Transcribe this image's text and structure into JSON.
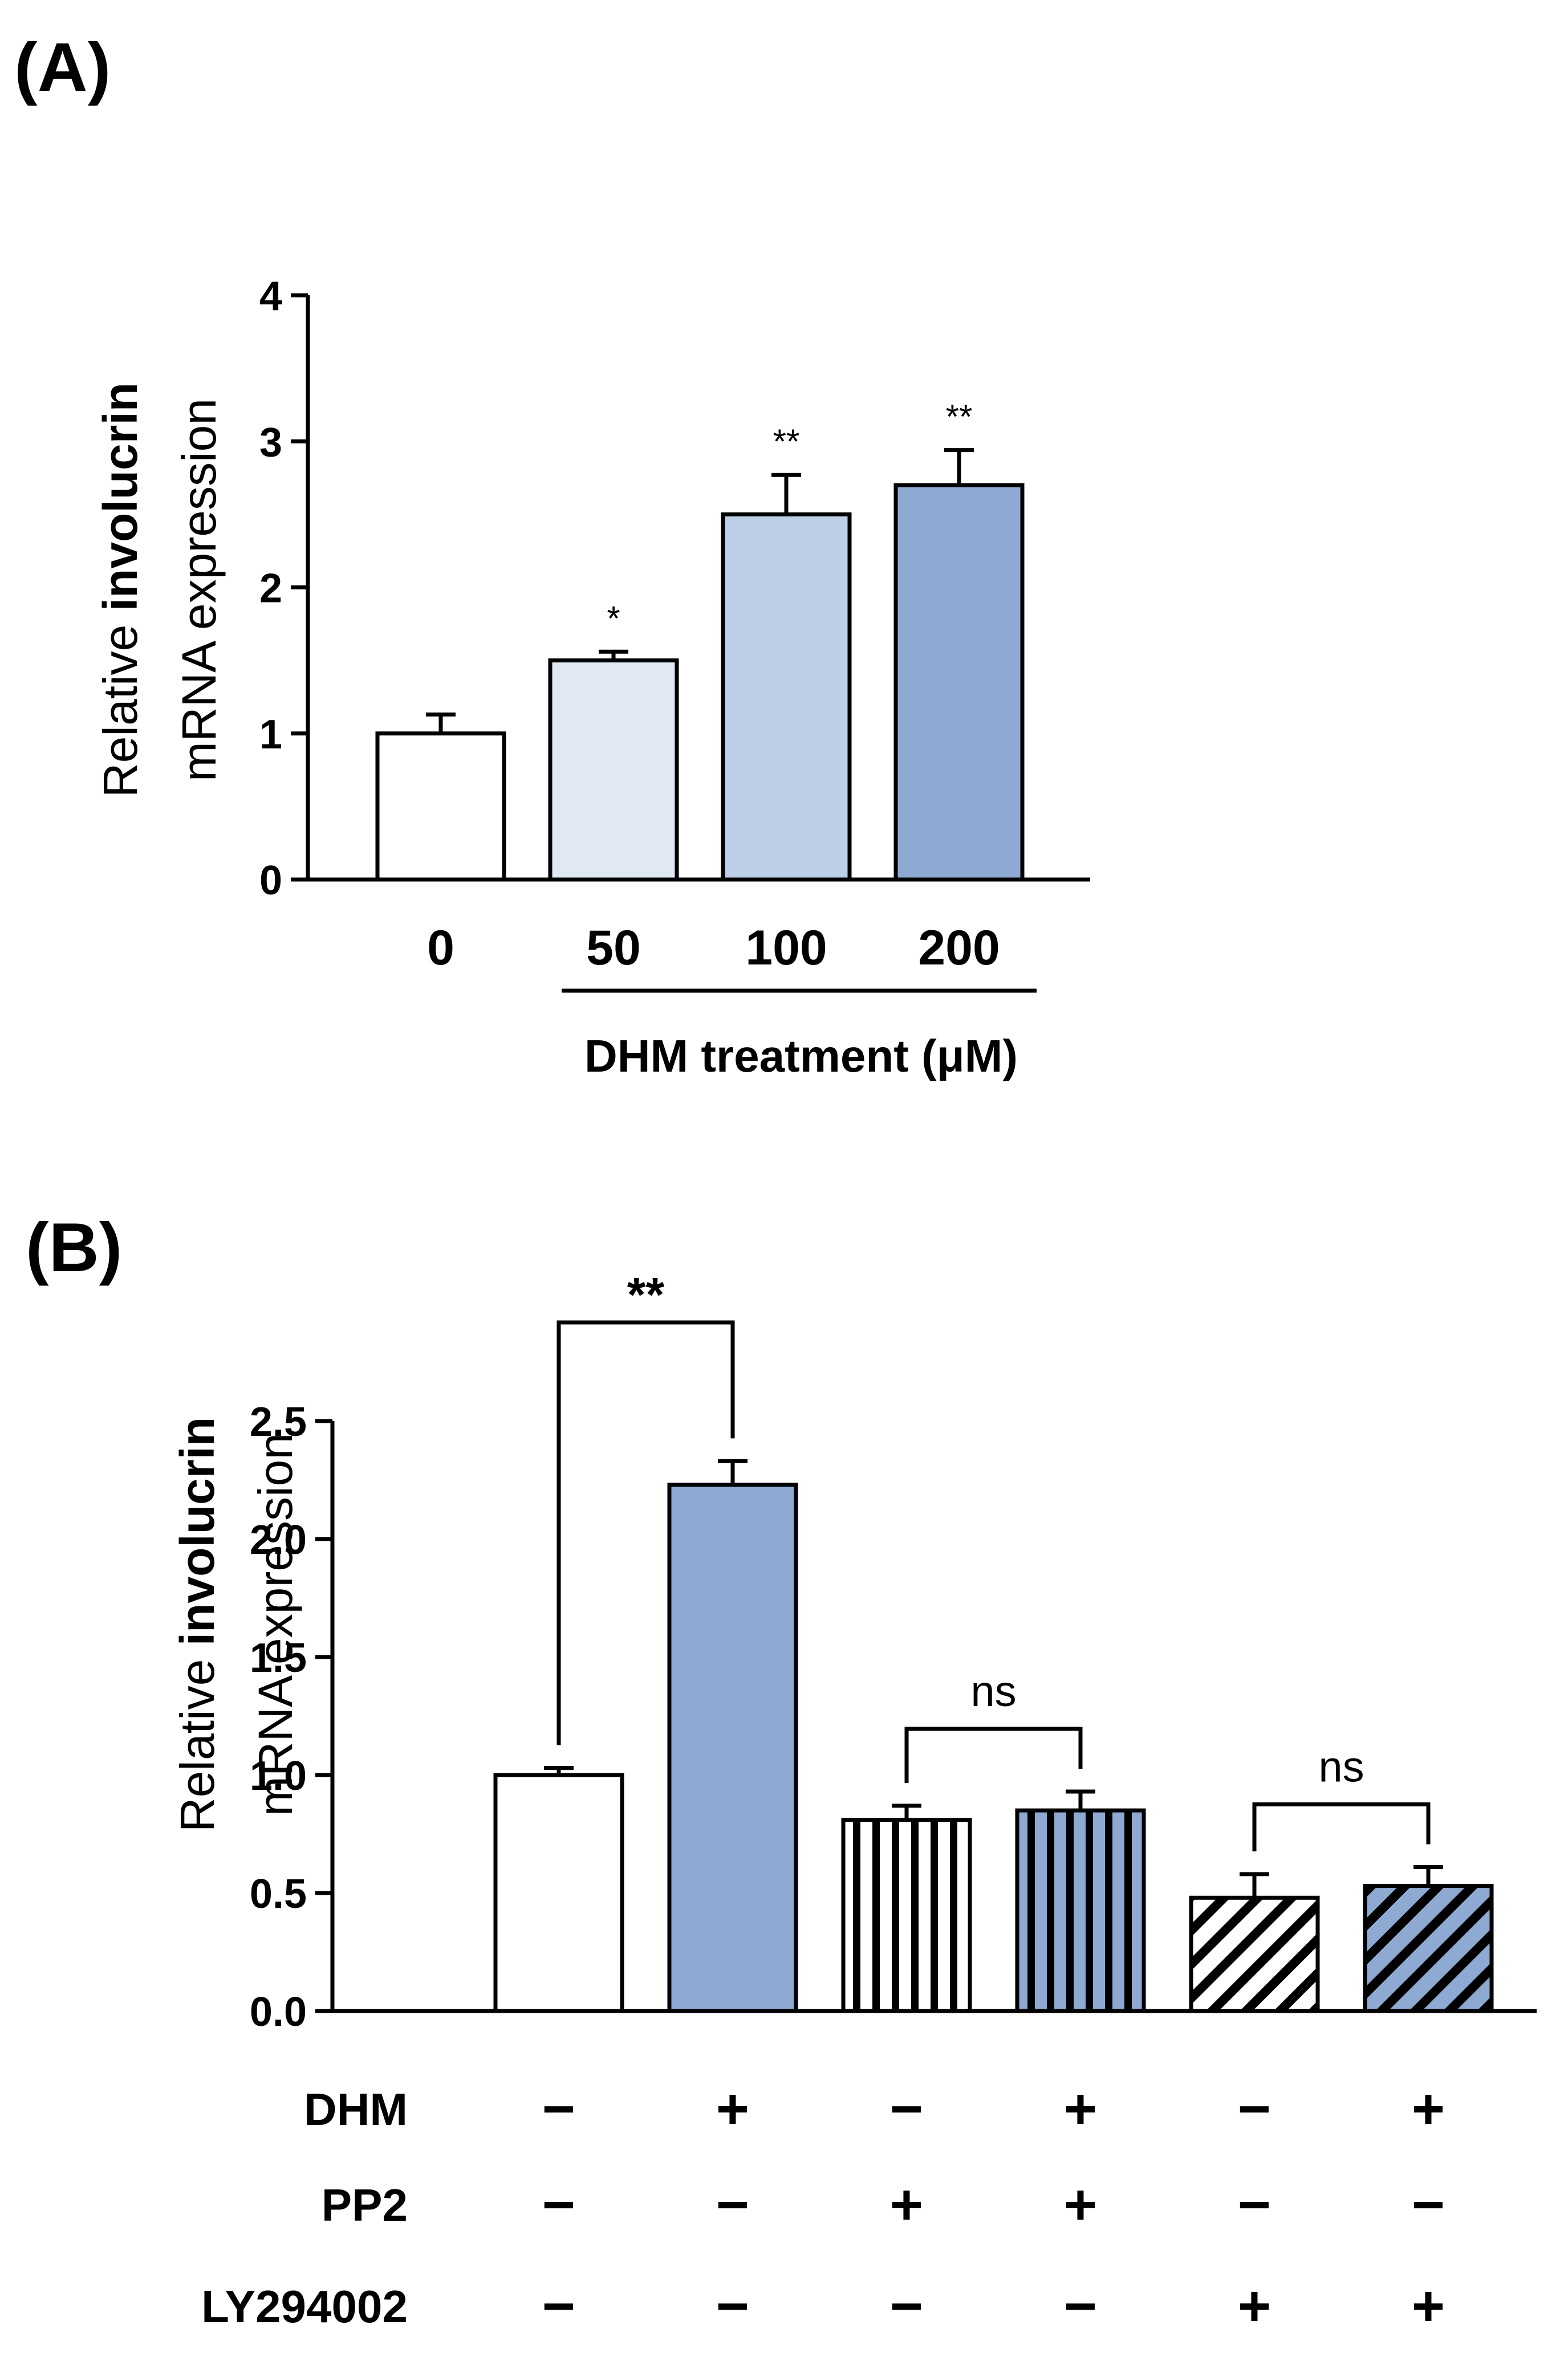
{
  "chart_data": [
    {
      "type": "bar",
      "panel_label": "(A)",
      "title": "",
      "categories": [
        "0",
        "50",
        "100",
        "200"
      ],
      "values": [
        1.0,
        1.5,
        2.5,
        2.7
      ],
      "errors": [
        0.13,
        0.06,
        0.27,
        0.24
      ],
      "significance": [
        "",
        "*",
        "**",
        "**"
      ],
      "bar_colors": [
        "#ffffff",
        "#dfe8f3",
        "#bccfe6",
        "#8eaad2"
      ],
      "ylabel_prefix": "Relative ",
      "ylabel_bold": "involucrin",
      "ylabel_line2": "mRNA expression",
      "xlabel": "DHM treatment (μM)",
      "ylim": [
        0,
        4
      ],
      "yticks": [
        "0",
        "1",
        "2",
        "3",
        "4"
      ],
      "grid": false,
      "legend": "none"
    },
    {
      "type": "bar",
      "panel_label": "(B)",
      "title": "",
      "values": [
        1.0,
        2.23,
        0.81,
        0.85,
        0.48,
        0.53
      ],
      "errors": [
        0.03,
        0.1,
        0.06,
        0.08,
        0.1,
        0.08
      ],
      "fills": [
        "white",
        "blue",
        "white-vertical",
        "blue-vertical",
        "white-diagonal",
        "blue-diagonal"
      ],
      "accent_color": "#8eaad2",
      "ylabel_prefix": "Relative ",
      "ylabel_bold": "involucrin",
      "ylabel_line2": "mRNA expression",
      "ylim": [
        0,
        2.5
      ],
      "yticks": [
        "0.0",
        "0.5",
        "1.0",
        "1.5",
        "2.0",
        "2.5"
      ],
      "comparisons": [
        {
          "from": 0,
          "to": 1,
          "label": "**"
        },
        {
          "from": 2,
          "to": 3,
          "label": "ns"
        },
        {
          "from": 4,
          "to": 5,
          "label": "ns"
        }
      ],
      "treatment_rows": [
        {
          "label": "DHM",
          "signs": [
            "−",
            "+",
            "−",
            "+",
            "−",
            "+"
          ]
        },
        {
          "label": "PP2",
          "signs": [
            "−",
            "−",
            "+",
            "+",
            "−",
            "−"
          ]
        },
        {
          "label": "LY294002",
          "signs": [
            "−",
            "−",
            "−",
            "−",
            "+",
            "+"
          ]
        }
      ],
      "grid": false,
      "legend": "none"
    }
  ]
}
